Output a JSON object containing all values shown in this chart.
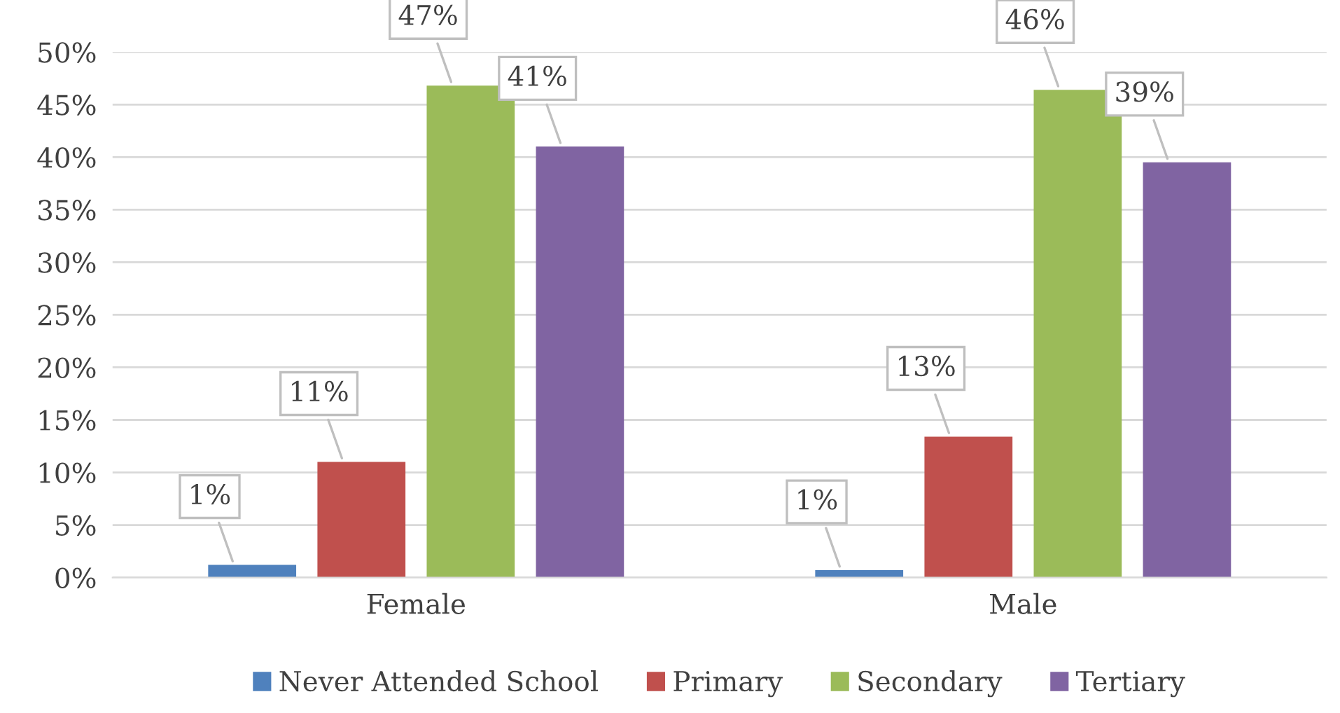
{
  "chart_data": {
    "type": "bar",
    "categories": [
      "Female",
      "Male"
    ],
    "series": [
      {
        "name": "Never Attended School",
        "color": "#4f81bd",
        "values": [
          1.2,
          0.7
        ],
        "value_labels": [
          "1%",
          "1%"
        ]
      },
      {
        "name": "Primary",
        "color": "#c0504d",
        "values": [
          11,
          13.4
        ],
        "value_labels": [
          "11%",
          "13%"
        ]
      },
      {
        "name": "Secondary",
        "color": "#9bbb59",
        "values": [
          46.8,
          46.4
        ],
        "value_labels": [
          "47%",
          "46%"
        ]
      },
      {
        "name": "Tertiary",
        "color": "#8064a2",
        "values": [
          41,
          39.5
        ],
        "value_labels": [
          "41%",
          "39%"
        ]
      }
    ],
    "ylim": [
      0,
      50
    ],
    "yticks": [
      {
        "value": 0,
        "label": "0%"
      },
      {
        "value": 5,
        "label": "5%"
      },
      {
        "value": 10,
        "label": "10%"
      },
      {
        "value": 15,
        "label": "15%"
      },
      {
        "value": 20,
        "label": "20%"
      },
      {
        "value": 25,
        "label": "25%"
      },
      {
        "value": 30,
        "label": "30%"
      },
      {
        "value": 35,
        "label": "35%"
      },
      {
        "value": 40,
        "label": "40%"
      },
      {
        "value": 45,
        "label": "45%"
      },
      {
        "value": 50,
        "label": "50%"
      }
    ],
    "grid": "y",
    "legend": "bottom"
  }
}
